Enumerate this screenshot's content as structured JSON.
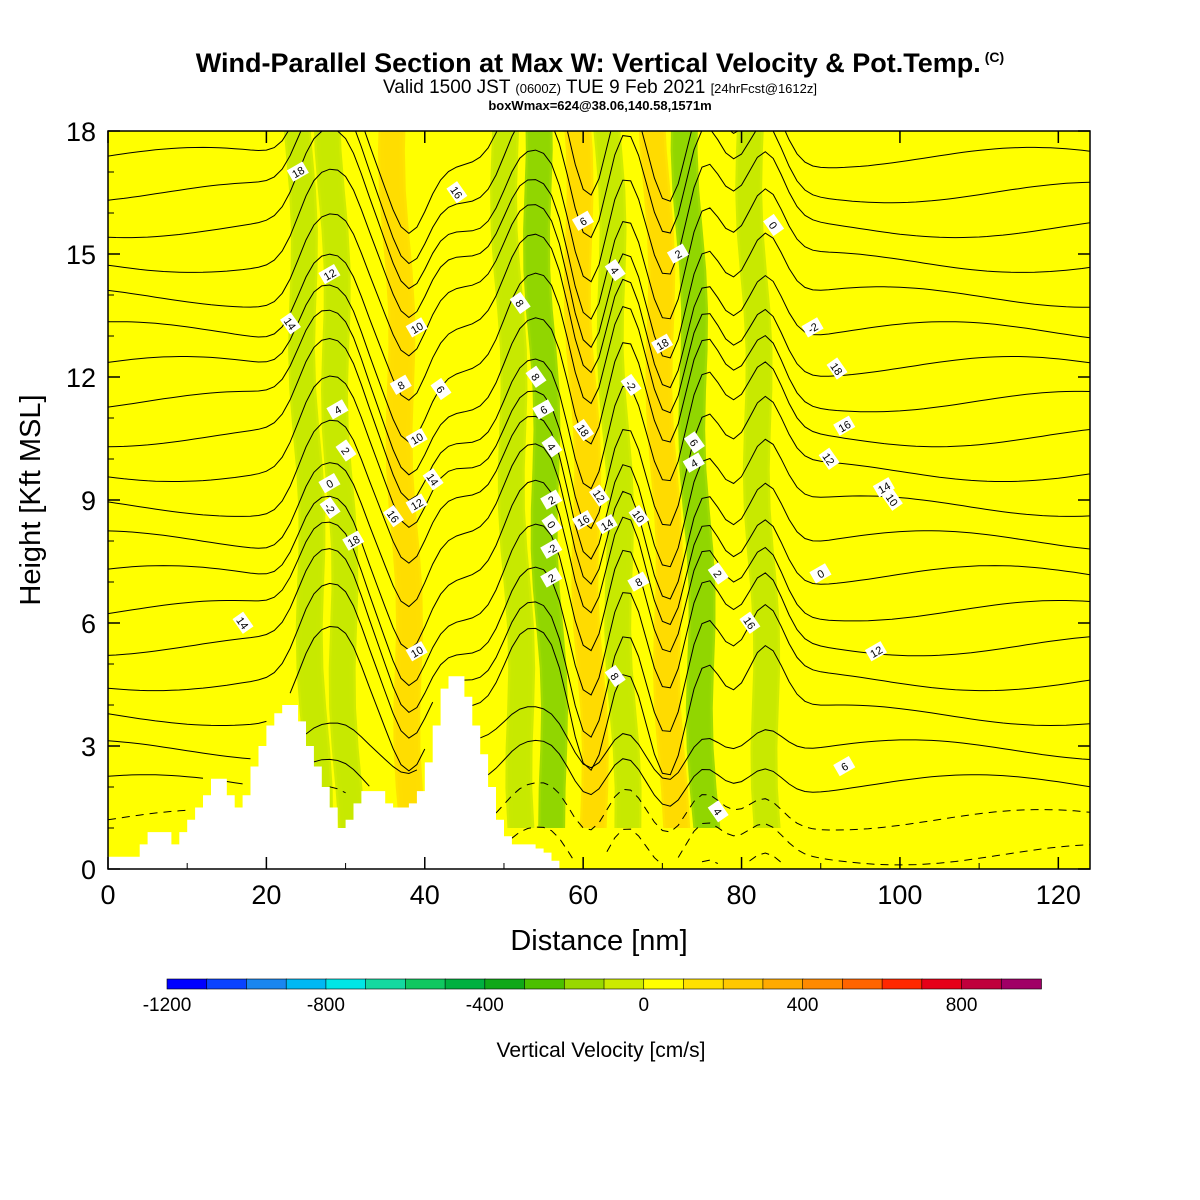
{
  "header": {
    "title": "Wind-Parallel Section at Max W: Vertical Velocity & Pot.Temp.",
    "copyright": "(C)",
    "valid_main": "Valid 1500 JST",
    "valid_utc": "(0600Z)",
    "valid_date": "TUE 9 Feb 2021",
    "forecast": "[24hrFcst@1612z]",
    "box_info": "boxWmax=624@38.06,140.58,1571m"
  },
  "chart_data": {
    "type": "heatmap",
    "xlabel": "Distance [nm]",
    "ylabel": "Height [Kft MSL]",
    "xlim": [
      0,
      124
    ],
    "ylim": [
      0,
      18
    ],
    "x_ticks": [
      0,
      20,
      40,
      60,
      80,
      100,
      120
    ],
    "y_ticks": [
      0,
      3,
      6,
      9,
      12,
      15,
      18
    ],
    "colorbar": {
      "label": "Vertical Velocity [cm/s]",
      "min": -1200,
      "max": 1000,
      "step": 100,
      "tick_values": [
        -1200,
        -800,
        -400,
        0,
        400,
        800
      ],
      "colors": [
        "#0000ff",
        "#0a43ff",
        "#1a86f0",
        "#00b8f4",
        "#00e6e6",
        "#14d9a0",
        "#10c860",
        "#00b040",
        "#10a818",
        "#4cc000",
        "#98d800",
        "#ccea00",
        "#ffff00",
        "#ffe000",
        "#ffc800",
        "#ffaa00",
        "#ff8a00",
        "#ff6400",
        "#ff2800",
        "#e60018",
        "#c0003c",
        "#a00066",
        "#7a0096",
        "#500090"
      ]
    },
    "terrain_heights_kft": [
      0.3,
      0.3,
      0.3,
      0.3,
      0.6,
      0.9,
      0.9,
      0.9,
      0.6,
      0.9,
      1.2,
      1.5,
      1.8,
      2.2,
      2.2,
      1.8,
      1.5,
      1.8,
      2.5,
      3.0,
      3.5,
      3.8,
      4.0,
      4.0,
      3.6,
      3.0,
      2.5,
      2.0,
      1.5,
      1.0,
      1.2,
      1.6,
      1.9,
      1.9,
      1.9,
      1.6,
      1.5,
      1.5,
      1.6,
      1.9,
      2.6,
      3.5,
      4.4,
      4.7,
      4.7,
      4.2,
      3.5,
      2.8,
      2.0,
      1.2,
      0.8,
      0.6,
      0.6,
      0.6,
      0.5,
      0.4,
      0.2
    ],
    "velocity_bands": [
      {
        "x": 26,
        "value": -300
      },
      {
        "x": 30,
        "value": -350
      },
      {
        "x": 38,
        "value": 550
      },
      {
        "x": 52,
        "value": -350
      },
      {
        "x": 56,
        "value": -450
      },
      {
        "x": 61,
        "value": 600
      },
      {
        "x": 65,
        "value": -300
      },
      {
        "x": 71,
        "value": 624
      },
      {
        "x": 75,
        "value": -450
      },
      {
        "x": 83,
        "value": -250
      }
    ],
    "theta_labels": [
      "18",
      "16",
      "12",
      "14",
      "10",
      "8",
      "6",
      "4",
      "2",
      "0",
      "-2"
    ],
    "series": []
  }
}
